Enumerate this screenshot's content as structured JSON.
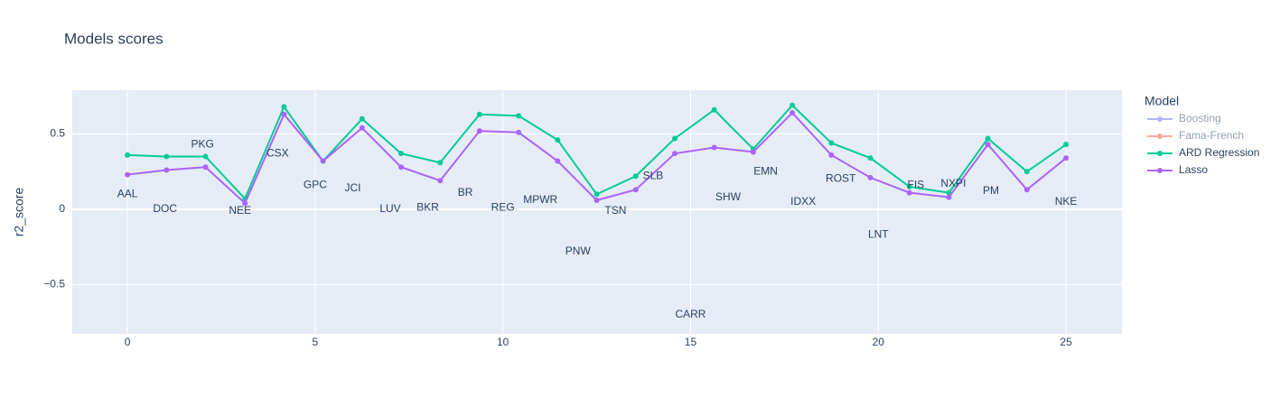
{
  "chart_data": {
    "type": "line",
    "title": "Models scores",
    "y_label": "r2_score",
    "legend_title": "Model",
    "xlim": [
      -1.47,
      26.49
    ],
    "xticks": [
      0,
      5,
      10,
      15,
      20,
      25
    ],
    "ylim": [
      -0.826,
      0.79
    ],
    "yticks": [
      {
        "value": -0.5,
        "label": "−0.5"
      },
      0,
      0.5
    ],
    "grid": true,
    "legend": "right",
    "series": [
      {
        "name": "Boosting",
        "color": "#636efa",
        "visible": false
      },
      {
        "name": "Fama-French",
        "color": "#ef553b",
        "visible": false
      },
      {
        "name": "ARD Regression",
        "color": "#00cc96",
        "x": [
          0,
          1.04,
          2.08,
          3.13,
          4.17,
          5.21,
          6.25,
          7.29,
          8.33,
          9.38,
          10.42,
          11.46,
          12.5,
          13.54,
          14.58,
          15.63,
          16.67,
          17.71,
          18.75,
          19.79,
          20.83,
          21.88,
          22.92,
          23.96,
          25
        ],
        "values": [
          0.36,
          0.35,
          0.35,
          0.07,
          0.68,
          0.32,
          0.6,
          0.37,
          0.31,
          0.63,
          0.62,
          0.46,
          0.1,
          0.22,
          0.47,
          0.66,
          0.4,
          0.69,
          0.44,
          0.34,
          0.15,
          0.11,
          0.47,
          0.25,
          0.43
        ]
      },
      {
        "name": "Lasso",
        "color": "#ab63fa",
        "x": [
          0,
          1.04,
          2.08,
          3.13,
          4.17,
          5.21,
          6.25,
          7.29,
          8.33,
          9.38,
          10.42,
          11.46,
          12.5,
          13.54,
          14.58,
          15.63,
          16.67,
          17.71,
          18.75,
          19.79,
          20.83,
          21.88,
          22.92,
          23.96,
          25
        ],
        "values": [
          0.23,
          0.26,
          0.28,
          0.04,
          0.63,
          0.32,
          0.54,
          0.28,
          0.19,
          0.52,
          0.51,
          0.32,
          0.06,
          0.13,
          0.37,
          0.41,
          0.38,
          0.64,
          0.36,
          0.21,
          0.11,
          0.08,
          0.43,
          0.13,
          0.34
        ]
      }
    ],
    "annotations": [
      {
        "text": "AAL",
        "x": 0,
        "y": 0.1
      },
      {
        "text": "DOC",
        "x": 1,
        "y": 0.0
      },
      {
        "text": "PKG",
        "x": 2,
        "y": 0.43
      },
      {
        "text": "NEE",
        "x": 3,
        "y": -0.01
      },
      {
        "text": "CSX",
        "x": 4,
        "y": 0.37
      },
      {
        "text": "GPC",
        "x": 5,
        "y": 0.16
      },
      {
        "text": "JCI",
        "x": 6,
        "y": 0.14
      },
      {
        "text": "LUV",
        "x": 7,
        "y": 0.0
      },
      {
        "text": "BKR",
        "x": 8,
        "y": 0.01
      },
      {
        "text": "BR",
        "x": 9,
        "y": 0.11
      },
      {
        "text": "REG",
        "x": 10,
        "y": 0.01
      },
      {
        "text": "MPWR",
        "x": 11,
        "y": 0.06
      },
      {
        "text": "PNW",
        "x": 12,
        "y": -0.28
      },
      {
        "text": "TSN",
        "x": 13,
        "y": -0.01
      },
      {
        "text": "SLB",
        "x": 14,
        "y": 0.22
      },
      {
        "text": "CARR",
        "x": 15,
        "y": -0.7
      },
      {
        "text": "SHW",
        "x": 16,
        "y": 0.08
      },
      {
        "text": "EMN",
        "x": 17,
        "y": 0.25
      },
      {
        "text": "IDXX",
        "x": 18,
        "y": 0.05
      },
      {
        "text": "ROST",
        "x": 19,
        "y": 0.2
      },
      {
        "text": "LNT",
        "x": 20,
        "y": -0.17
      },
      {
        "text": "FIS",
        "x": 21,
        "y": 0.16
      },
      {
        "text": "NXPI",
        "x": 22,
        "y": 0.17
      },
      {
        "text": "PM",
        "x": 23,
        "y": 0.12
      },
      {
        "text": "NKE",
        "x": 25,
        "y": 0.05
      }
    ]
  }
}
